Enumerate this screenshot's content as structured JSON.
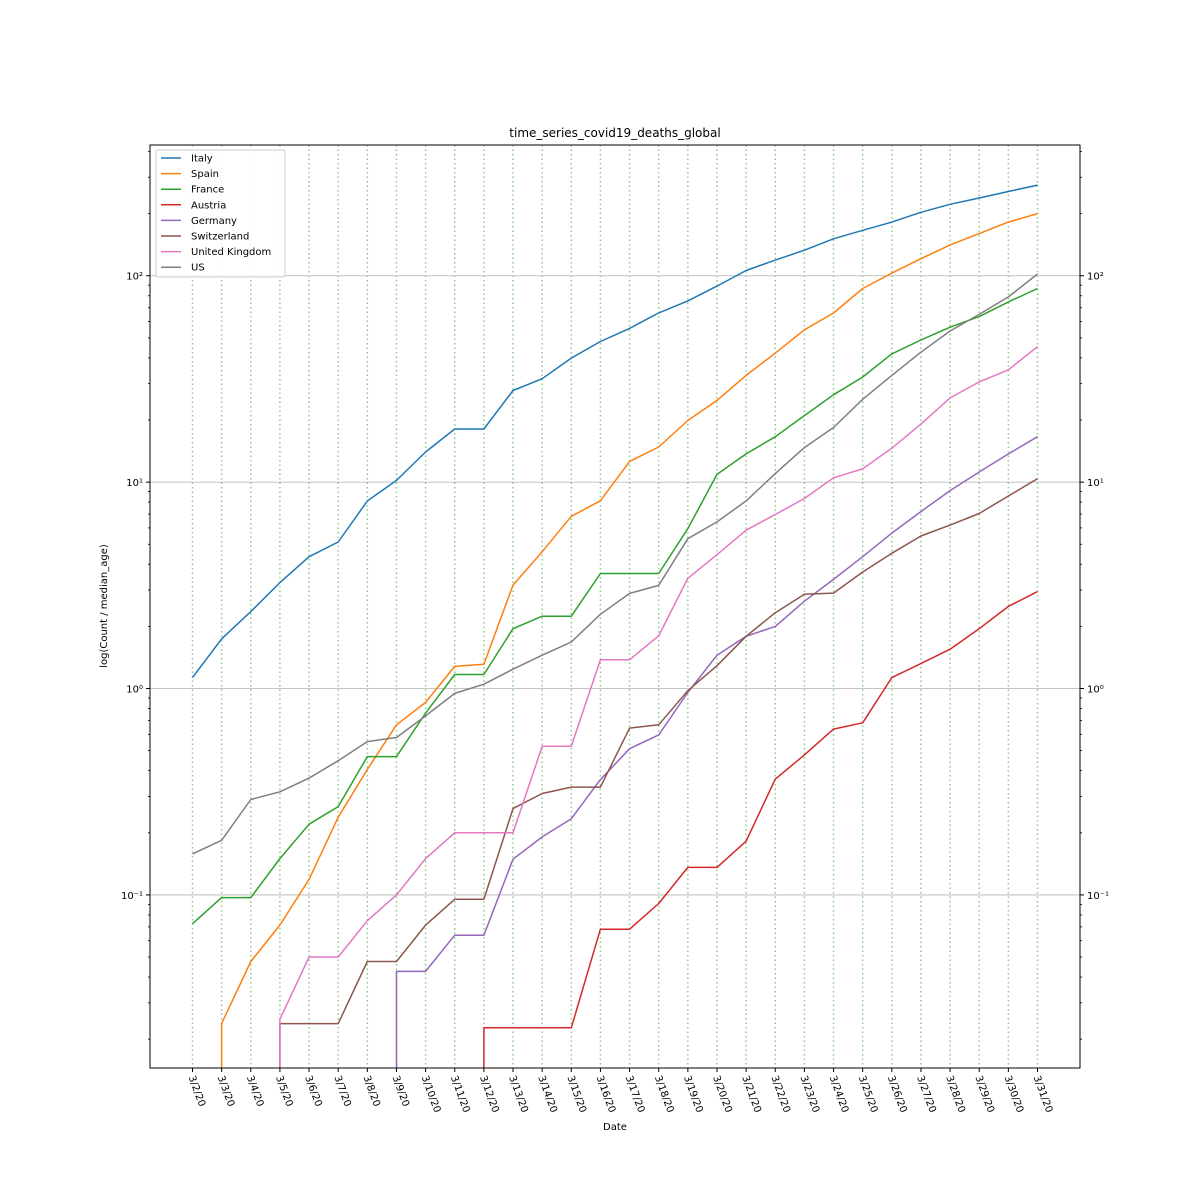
{
  "chart_data": {
    "type": "line",
    "title": "time_series_covid19_deaths_global",
    "xlabel": "Date",
    "ylabel": "log(Count / median_age)",
    "yscale": "log",
    "ylim": [
      0.0145,
      430
    ],
    "y_ticks": [
      {
        "value": 0.1,
        "label": "10⁻¹"
      },
      {
        "value": 1,
        "label": "10⁰"
      },
      {
        "value": 10,
        "label": "10¹"
      },
      {
        "value": 100,
        "label": "10²"
      }
    ],
    "y_ticks_right": true,
    "grid": "horizontal solid gray at major ticks; vertical dotted green at each date",
    "legend_position": "top-left",
    "categories": [
      "3/2/20",
      "3/3/20",
      "3/4/20",
      "3/5/20",
      "3/6/20",
      "3/7/20",
      "3/8/20",
      "3/9/20",
      "3/10/20",
      "3/11/20",
      "3/12/20",
      "3/13/20",
      "3/14/20",
      "3/15/20",
      "3/16/20",
      "3/17/20",
      "3/18/20",
      "3/19/20",
      "3/20/20",
      "3/21/20",
      "3/22/20",
      "3/23/20",
      "3/24/20",
      "3/25/20",
      "3/26/20",
      "3/27/20",
      "3/28/20",
      "3/29/20",
      "3/30/20",
      "3/31/20"
    ],
    "series": [
      {
        "name": "Italy",
        "color": "#1f77b4",
        "values": [
          1.13,
          1.74,
          2.36,
          3.26,
          4.35,
          5.13,
          8.1,
          10.2,
          14.0,
          18.1,
          18.1,
          27.8,
          31.7,
          39.9,
          48.0,
          55.6,
          66.1,
          75.5,
          89.1,
          106.0,
          119.0,
          133.0,
          151.0,
          166.0,
          182.0,
          203.0,
          222.0,
          238.0,
          256.0,
          275.0
        ]
      },
      {
        "name": "Spain",
        "color": "#ff7f0e",
        "values": [
          null,
          0.0238,
          0.0476,
          0.0714,
          0.119,
          0.238,
          0.405,
          0.667,
          0.857,
          1.28,
          1.31,
          3.17,
          4.6,
          6.83,
          8.12,
          12.6,
          14.8,
          19.9,
          24.9,
          32.9,
          42.2,
          54.7,
          66.0,
          86.7,
          103.0,
          121.0,
          141.0,
          160.0,
          182.0,
          200.0
        ]
      },
      {
        "name": "France",
        "color": "#2ca02c",
        "values": [
          0.0725,
          0.097,
          0.097,
          0.15,
          0.22,
          0.268,
          0.468,
          0.468,
          0.76,
          1.17,
          1.17,
          1.95,
          2.24,
          2.24,
          3.61,
          3.61,
          3.61,
          5.95,
          10.9,
          13.7,
          16.6,
          21.0,
          26.5,
          32.3,
          41.8,
          48.8,
          56.3,
          63.4,
          74.7,
          86.7
        ]
      },
      {
        "name": "Austria",
        "color": "#d62728",
        "values": [
          null,
          null,
          null,
          null,
          null,
          null,
          null,
          null,
          null,
          null,
          0.0227,
          0.0227,
          0.0227,
          0.0227,
          0.0682,
          0.0682,
          0.0909,
          0.136,
          0.136,
          0.182,
          0.364,
          0.477,
          0.636,
          0.682,
          1.13,
          1.32,
          1.55,
          1.95,
          2.5,
          2.95
        ]
      },
      {
        "name": "Germany",
        "color": "#9467bd",
        "values": [
          null,
          null,
          null,
          null,
          null,
          null,
          null,
          0.0426,
          0.0426,
          0.0638,
          0.0638,
          0.149,
          0.191,
          0.234,
          0.362,
          0.511,
          0.596,
          0.957,
          1.45,
          1.79,
          2.0,
          2.65,
          3.38,
          4.35,
          5.66,
          7.2,
          9.1,
          11.2,
          13.7,
          16.6
        ]
      },
      {
        "name": "Switzerland",
        "color": "#8c564b",
        "values": [
          null,
          null,
          null,
          0.0238,
          0.0238,
          0.0238,
          0.0476,
          0.0476,
          0.0714,
          0.0952,
          0.0952,
          0.262,
          0.31,
          0.333,
          0.333,
          0.643,
          0.667,
          0.976,
          1.29,
          1.79,
          2.33,
          2.86,
          2.9,
          3.67,
          4.52,
          5.48,
          6.19,
          7.05,
          8.57,
          10.4
        ]
      },
      {
        "name": "United Kingdom",
        "color": "#e377c2",
        "values": [
          null,
          null,
          null,
          0.025,
          0.05,
          0.05,
          0.075,
          0.1,
          0.15,
          0.2,
          0.2,
          0.2,
          0.525,
          0.525,
          1.38,
          1.38,
          1.8,
          3.42,
          4.45,
          5.85,
          6.97,
          8.33,
          10.5,
          11.6,
          14.6,
          19.1,
          25.6,
          30.6,
          35.0,
          45.3
        ]
      },
      {
        "name": "US",
        "color": "#7f7f7f",
        "values": [
          0.158,
          0.184,
          0.29,
          0.316,
          0.368,
          0.447,
          0.553,
          0.579,
          0.737,
          0.947,
          1.05,
          1.24,
          1.45,
          1.68,
          2.29,
          2.89,
          3.16,
          5.32,
          6.42,
          8.11,
          11.0,
          14.7,
          18.4,
          25.2,
          32.9,
          42.6,
          54.0,
          65.0,
          79.0,
          102.0
        ]
      }
    ]
  }
}
